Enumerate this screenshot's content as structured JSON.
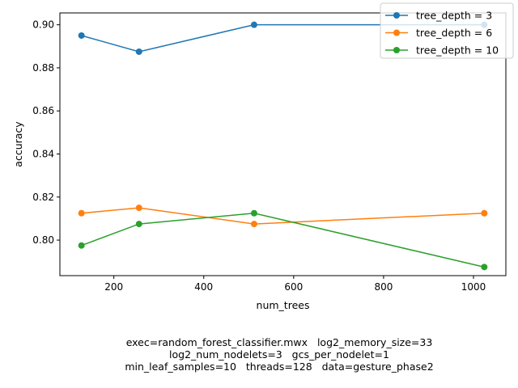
{
  "chart_data": {
    "type": "line",
    "xlabel": "num_trees",
    "ylabel": "accuracy",
    "x": [
      128,
      256,
      512,
      1024
    ],
    "xlim": [
      80,
      1072
    ],
    "ylim": [
      0.7835,
      0.9055
    ],
    "xticks": [
      200,
      400,
      600,
      800,
      1000
    ],
    "yticks": [
      0.8,
      0.82,
      0.84,
      0.86,
      0.88,
      0.9
    ],
    "xtick_labels": [
      "200",
      "400",
      "600",
      "800",
      "1000"
    ],
    "ytick_labels": [
      "0.80",
      "0.82",
      "0.84",
      "0.86",
      "0.88",
      "0.90"
    ],
    "grid": false,
    "legend_position": "top-right",
    "series": [
      {
        "name": "tree_depth = 3",
        "color": "#1f77b4",
        "values": [
          0.895,
          0.8875,
          0.9,
          0.9
        ]
      },
      {
        "name": "tree_depth = 6",
        "color": "#ff7f0e",
        "values": [
          0.8125,
          0.815,
          0.8075,
          0.8125
        ]
      },
      {
        "name": "tree_depth = 10",
        "color": "#2ca02c",
        "values": [
          0.7975,
          0.8075,
          0.8125,
          0.7875
        ]
      }
    ]
  },
  "caption": {
    "line1": "exec=random_forest_classifier.mwx   log2_memory_size=33",
    "line2": "log2_num_nodelets=3   gcs_per_nodelet=1",
    "line3": "min_leaf_samples=10   threads=128   data=gesture_phase2"
  }
}
